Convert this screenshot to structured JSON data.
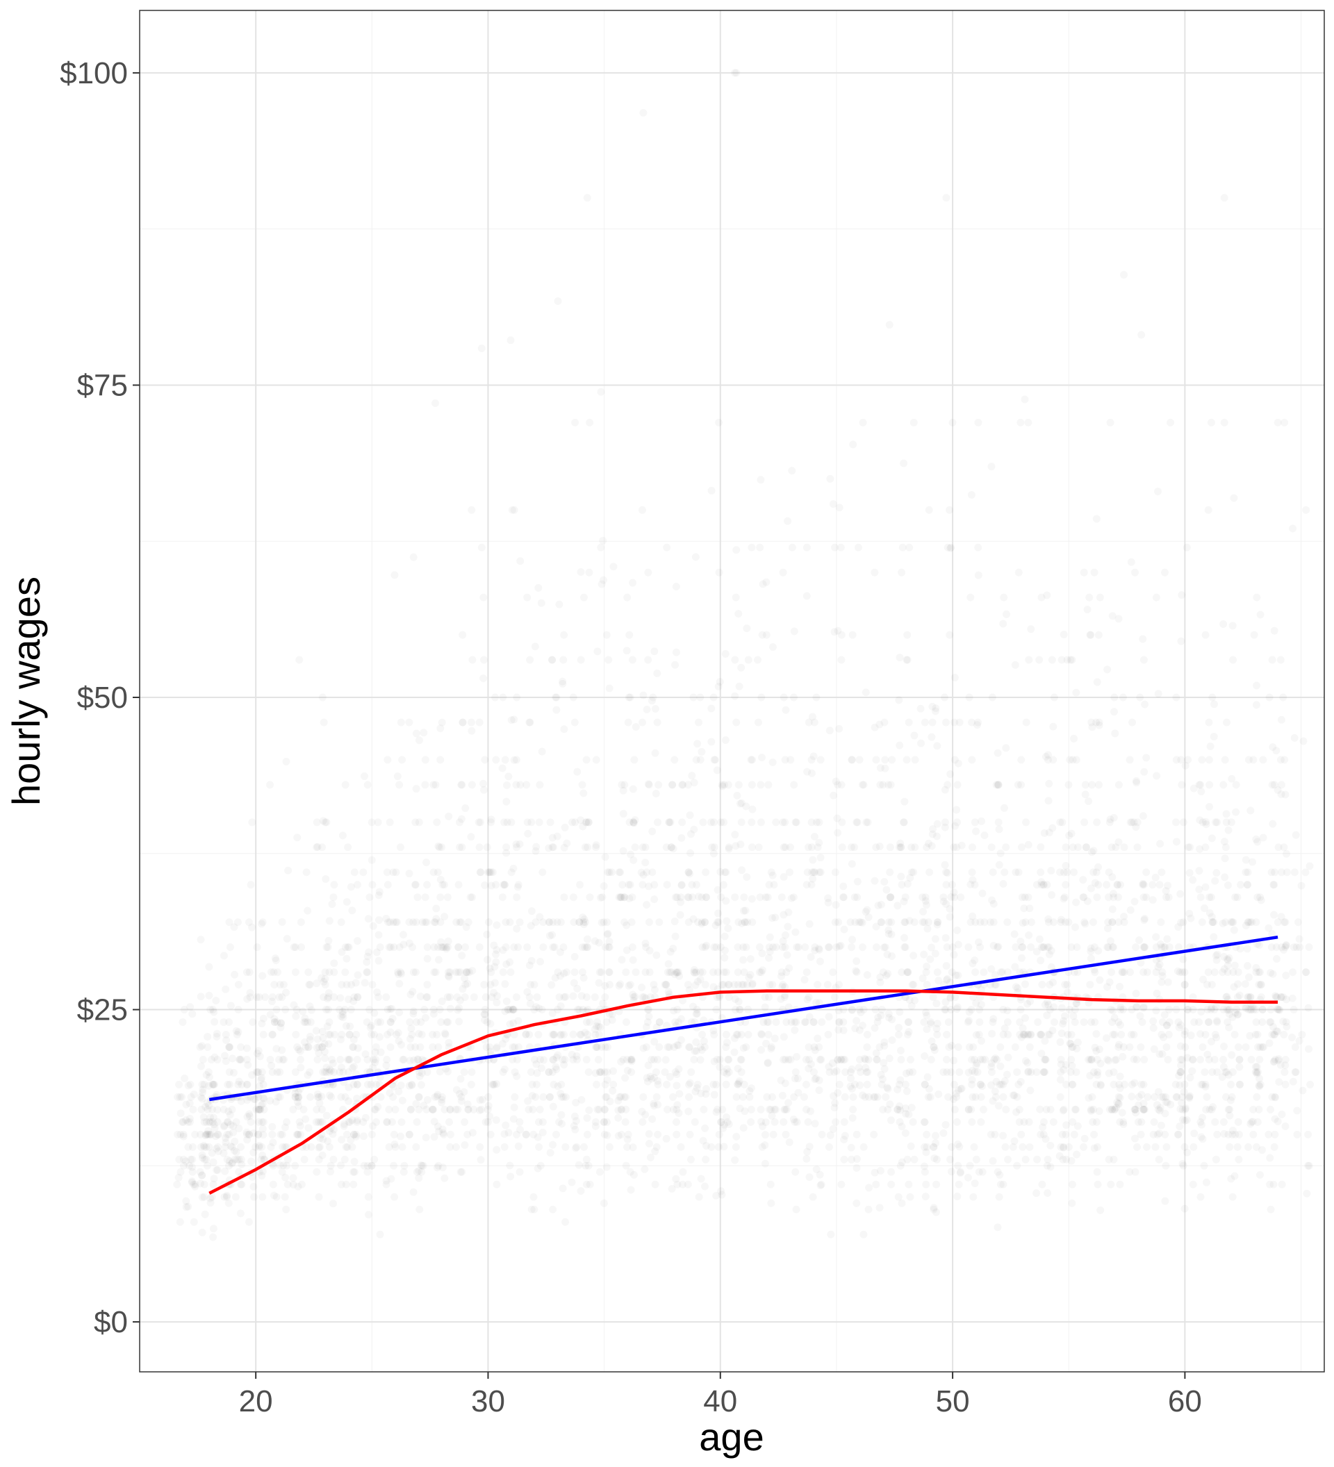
{
  "chart_data": {
    "type": "scatter",
    "xlabel": "age",
    "ylabel": "hourly wages",
    "xlim": [
      15,
      66
    ],
    "ylim": [
      -4,
      105
    ],
    "x_ticks": [
      20,
      30,
      40,
      50,
      60
    ],
    "x_minor_ticks": [
      15,
      25,
      35,
      45,
      55,
      65
    ],
    "y_ticks": [
      0,
      25,
      50,
      75,
      100
    ],
    "y_tick_labels": [
      "$0",
      "$25",
      "$50",
      "$75",
      "$100"
    ],
    "y_minor_ticks": [
      12.5,
      37.5,
      62.5,
      87.5
    ],
    "grid": true,
    "points_color": "#000000",
    "points_alpha": 0.03,
    "scatter_age_range": [
      17,
      65
    ],
    "scatter_wage_range": [
      2,
      100
    ],
    "series": [
      {
        "type": "line",
        "color": "#0000ff",
        "x": [
          18,
          64
        ],
        "y": [
          17.8,
          30.8
        ]
      },
      {
        "type": "line",
        "color": "#ff0000",
        "x": [
          18,
          20,
          22,
          24,
          26,
          28,
          30,
          32,
          34,
          36,
          38,
          40,
          42,
          44,
          46,
          48,
          50,
          52,
          54,
          56,
          58,
          60,
          62,
          64
        ],
        "y": [
          10.3,
          12.2,
          14.3,
          16.8,
          19.5,
          21.4,
          22.9,
          23.8,
          24.5,
          25.3,
          26.0,
          26.4,
          26.5,
          26.5,
          26.5,
          26.5,
          26.4,
          26.2,
          26.0,
          25.8,
          25.7,
          25.7,
          25.6,
          25.6
        ]
      }
    ]
  }
}
